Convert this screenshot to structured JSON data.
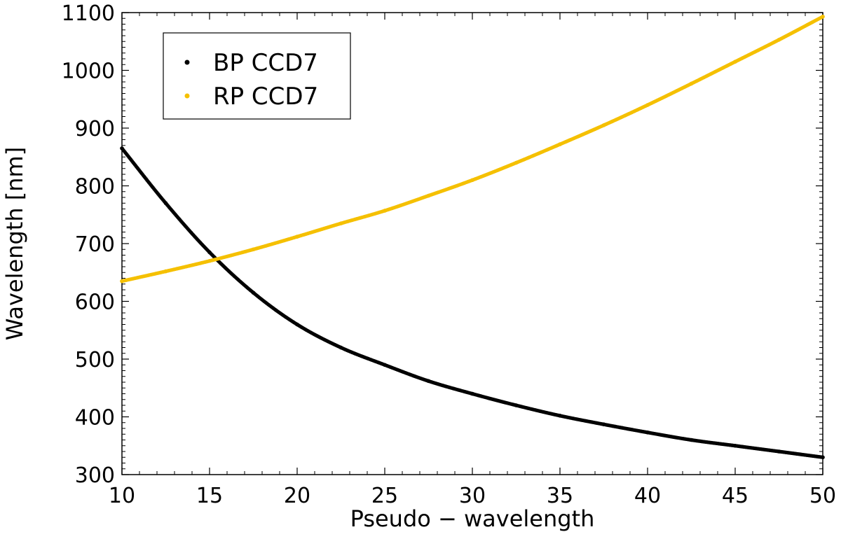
{
  "chart_data": {
    "type": "scatter",
    "title": "",
    "xlabel": "Pseudo − wavelength",
    "ylabel": "Wavelength [nm]",
    "xlim": [
      10,
      50
    ],
    "ylim": [
      300,
      1100
    ],
    "xticks": [
      10,
      15,
      20,
      25,
      30,
      35,
      40,
      45,
      50
    ],
    "yticks": [
      300,
      400,
      500,
      600,
      700,
      800,
      900,
      1000,
      1100
    ],
    "grid": false,
    "legend_position": "top-left",
    "series": [
      {
        "name": "BP CCD7",
        "color": "#000000",
        "x": [
          10,
          12.5,
          15,
          17.5,
          20,
          22.5,
          25,
          27.5,
          30,
          32.5,
          35,
          37.5,
          40,
          42.5,
          45,
          47.5,
          50
        ],
        "y": [
          865,
          770,
          685,
          615,
          560,
          520,
          490,
          462,
          440,
          420,
          402,
          387,
          373,
          360,
          350,
          340,
          330
        ]
      },
      {
        "name": "RP CCD7",
        "color": "#f5c000",
        "x": [
          10,
          12.5,
          15,
          17.5,
          20,
          22.5,
          25,
          27.5,
          30,
          32.5,
          35,
          37.5,
          40,
          42.5,
          45,
          47.5,
          50
        ],
        "y": [
          635,
          652,
          670,
          690,
          712,
          735,
          757,
          783,
          810,
          840,
          872,
          905,
          940,
          977,
          1015,
          1053,
          1093
        ]
      }
    ]
  }
}
